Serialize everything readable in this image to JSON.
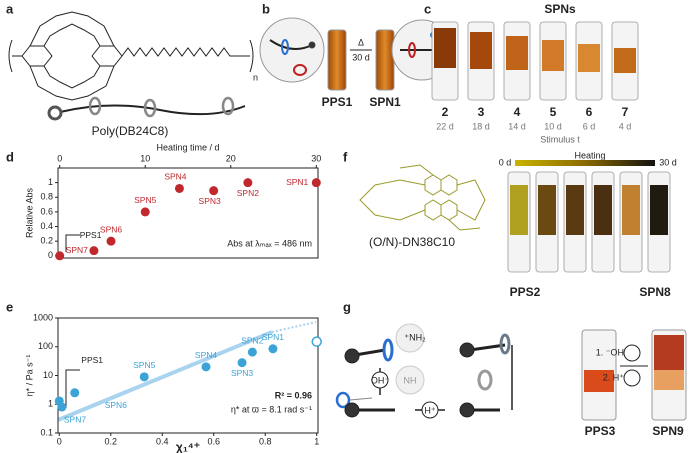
{
  "panel_labels": [
    "a",
    "b",
    "c",
    "d",
    "e",
    "f",
    "g"
  ],
  "panel_a": {
    "polymer_name": "Poly(DB24C8)",
    "repeat": "n"
  },
  "panel_b": {
    "arrow_label": "Δ",
    "arrow_time": "30 d",
    "vial_labels": [
      "PPS1",
      "SPN1"
    ]
  },
  "panel_c": {
    "title": "SPNs",
    "samples": [
      "2",
      "3",
      "4",
      "5",
      "6",
      "7"
    ],
    "times": [
      "22 d",
      "18 d",
      "14 d",
      "10 d",
      "6 d",
      "4 d"
    ],
    "axis_label": "Stimulus t"
  },
  "panel_f": {
    "macrocycle": "(O/N)-DN38C10",
    "gradient_title": "Heating",
    "gradient_start": "0 d",
    "gradient_end": "30 d",
    "vial_labels": [
      "PPS2",
      "SPN8"
    ]
  },
  "panel_g": {
    "ammonium": "⁺NH₂",
    "base": "OH⁻",
    "amine": "NH",
    "acid": "H⁺",
    "step_1": "1. ⁻OH",
    "step_2": "2. H⁺",
    "vial_labels": [
      "PPS3",
      "SPN9"
    ]
  },
  "chart_data": [
    {
      "type": "scatter",
      "xlabel": "Heating time / d",
      "ylabel": "Relative Abs",
      "x_axis_position": "top",
      "xlim": [
        -0.2,
        30.2
      ],
      "xticks": [
        0,
        10,
        20,
        30
      ],
      "ylim": [
        -0.03,
        1.2
      ],
      "yticks": [
        0,
        0.2,
        0.4,
        0.6,
        0.8,
        1
      ],
      "annotations": [
        "Abs at λₘₐₓ = 486 nm"
      ],
      "series": [
        {
          "color": "#c0282d",
          "x": [
            0,
            4,
            6,
            10,
            14,
            18,
            22,
            30
          ],
          "values": [
            0,
            0.07,
            0.2,
            0.6,
            0.92,
            0.89,
            1.0,
            1.0
          ],
          "labels": [
            "PPS1",
            "SPN7",
            "SPN6",
            "SPN5",
            "SPN4",
            "SPN3",
            "SPN2",
            "SPN1"
          ]
        }
      ]
    },
    {
      "type": "scatter",
      "xlabel": "χ₁⁴⁺",
      "ylabel": "η* / Pa s⁻¹",
      "x_axis_position": "bottom",
      "yscale": "log",
      "xlim": [
        -0.005,
        1.005
      ],
      "xticks": [
        0,
        0.2,
        0.4,
        0.6,
        0.8,
        1
      ],
      "ylim": [
        0.1,
        1000
      ],
      "yticks": [
        0.1,
        1,
        10,
        100,
        1000
      ],
      "annotations": [
        "R² = 0.96",
        "η* at ϖ = 8.1 rad s⁻¹"
      ],
      "series": [
        {
          "color": "#3ba3d6",
          "x": [
            0,
            0.01,
            0.06,
            0.33,
            0.57,
            0.71,
            0.75,
            0.83
          ],
          "values": [
            1.3,
            0.8,
            2.5,
            9,
            20,
            28,
            65,
            85
          ],
          "labels": [
            "PPS1",
            "SPN7",
            "SPN6",
            "SPN5",
            "SPN4",
            "SPN3",
            "SPN2",
            "SPN1"
          ]
        },
        {
          "color": "#3ba3d6",
          "marker": "open",
          "x": [
            1
          ],
          "values": [
            150
          ]
        }
      ]
    }
  ]
}
